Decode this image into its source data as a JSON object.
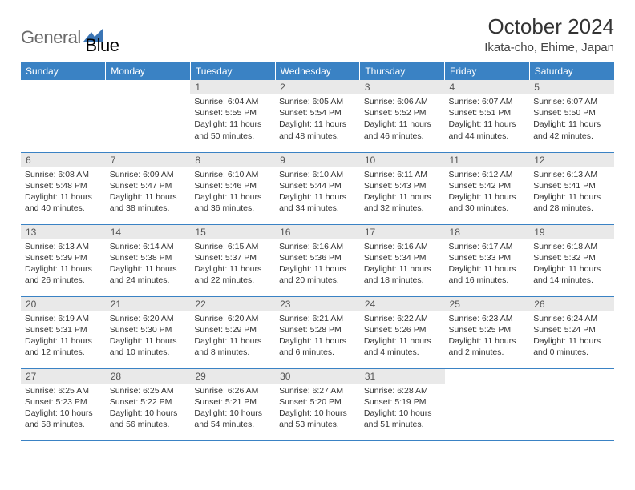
{
  "logo": {
    "part1": "General",
    "part2": "Blue"
  },
  "title": "October 2024",
  "location": "Ikata-cho, Ehime, Japan",
  "colors": {
    "header_bg": "#3a82c4",
    "header_text": "#ffffff",
    "daynum_bg": "#e9e9e9",
    "border": "#3a82c4",
    "logo_gray": "#6a6a6a",
    "logo_blue": "#3a75b5"
  },
  "weekdays": [
    "Sunday",
    "Monday",
    "Tuesday",
    "Wednesday",
    "Thursday",
    "Friday",
    "Saturday"
  ],
  "weeks": [
    [
      null,
      null,
      {
        "n": "1",
        "sr": "6:04 AM",
        "ss": "5:55 PM",
        "dl": "11 hours and 50 minutes."
      },
      {
        "n": "2",
        "sr": "6:05 AM",
        "ss": "5:54 PM",
        "dl": "11 hours and 48 minutes."
      },
      {
        "n": "3",
        "sr": "6:06 AM",
        "ss": "5:52 PM",
        "dl": "11 hours and 46 minutes."
      },
      {
        "n": "4",
        "sr": "6:07 AM",
        "ss": "5:51 PM",
        "dl": "11 hours and 44 minutes."
      },
      {
        "n": "5",
        "sr": "6:07 AM",
        "ss": "5:50 PM",
        "dl": "11 hours and 42 minutes."
      }
    ],
    [
      {
        "n": "6",
        "sr": "6:08 AM",
        "ss": "5:48 PM",
        "dl": "11 hours and 40 minutes."
      },
      {
        "n": "7",
        "sr": "6:09 AM",
        "ss": "5:47 PM",
        "dl": "11 hours and 38 minutes."
      },
      {
        "n": "8",
        "sr": "6:10 AM",
        "ss": "5:46 PM",
        "dl": "11 hours and 36 minutes."
      },
      {
        "n": "9",
        "sr": "6:10 AM",
        "ss": "5:44 PM",
        "dl": "11 hours and 34 minutes."
      },
      {
        "n": "10",
        "sr": "6:11 AM",
        "ss": "5:43 PM",
        "dl": "11 hours and 32 minutes."
      },
      {
        "n": "11",
        "sr": "6:12 AM",
        "ss": "5:42 PM",
        "dl": "11 hours and 30 minutes."
      },
      {
        "n": "12",
        "sr": "6:13 AM",
        "ss": "5:41 PM",
        "dl": "11 hours and 28 minutes."
      }
    ],
    [
      {
        "n": "13",
        "sr": "6:13 AM",
        "ss": "5:39 PM",
        "dl": "11 hours and 26 minutes."
      },
      {
        "n": "14",
        "sr": "6:14 AM",
        "ss": "5:38 PM",
        "dl": "11 hours and 24 minutes."
      },
      {
        "n": "15",
        "sr": "6:15 AM",
        "ss": "5:37 PM",
        "dl": "11 hours and 22 minutes."
      },
      {
        "n": "16",
        "sr": "6:16 AM",
        "ss": "5:36 PM",
        "dl": "11 hours and 20 minutes."
      },
      {
        "n": "17",
        "sr": "6:16 AM",
        "ss": "5:34 PM",
        "dl": "11 hours and 18 minutes."
      },
      {
        "n": "18",
        "sr": "6:17 AM",
        "ss": "5:33 PM",
        "dl": "11 hours and 16 minutes."
      },
      {
        "n": "19",
        "sr": "6:18 AM",
        "ss": "5:32 PM",
        "dl": "11 hours and 14 minutes."
      }
    ],
    [
      {
        "n": "20",
        "sr": "6:19 AM",
        "ss": "5:31 PM",
        "dl": "11 hours and 12 minutes."
      },
      {
        "n": "21",
        "sr": "6:20 AM",
        "ss": "5:30 PM",
        "dl": "11 hours and 10 minutes."
      },
      {
        "n": "22",
        "sr": "6:20 AM",
        "ss": "5:29 PM",
        "dl": "11 hours and 8 minutes."
      },
      {
        "n": "23",
        "sr": "6:21 AM",
        "ss": "5:28 PM",
        "dl": "11 hours and 6 minutes."
      },
      {
        "n": "24",
        "sr": "6:22 AM",
        "ss": "5:26 PM",
        "dl": "11 hours and 4 minutes."
      },
      {
        "n": "25",
        "sr": "6:23 AM",
        "ss": "5:25 PM",
        "dl": "11 hours and 2 minutes."
      },
      {
        "n": "26",
        "sr": "6:24 AM",
        "ss": "5:24 PM",
        "dl": "11 hours and 0 minutes."
      }
    ],
    [
      {
        "n": "27",
        "sr": "6:25 AM",
        "ss": "5:23 PM",
        "dl": "10 hours and 58 minutes."
      },
      {
        "n": "28",
        "sr": "6:25 AM",
        "ss": "5:22 PM",
        "dl": "10 hours and 56 minutes."
      },
      {
        "n": "29",
        "sr": "6:26 AM",
        "ss": "5:21 PM",
        "dl": "10 hours and 54 minutes."
      },
      {
        "n": "30",
        "sr": "6:27 AM",
        "ss": "5:20 PM",
        "dl": "10 hours and 53 minutes."
      },
      {
        "n": "31",
        "sr": "6:28 AM",
        "ss": "5:19 PM",
        "dl": "10 hours and 51 minutes."
      },
      null,
      null
    ]
  ],
  "labels": {
    "sunrise": "Sunrise: ",
    "sunset": "Sunset: ",
    "daylight": "Daylight: "
  }
}
